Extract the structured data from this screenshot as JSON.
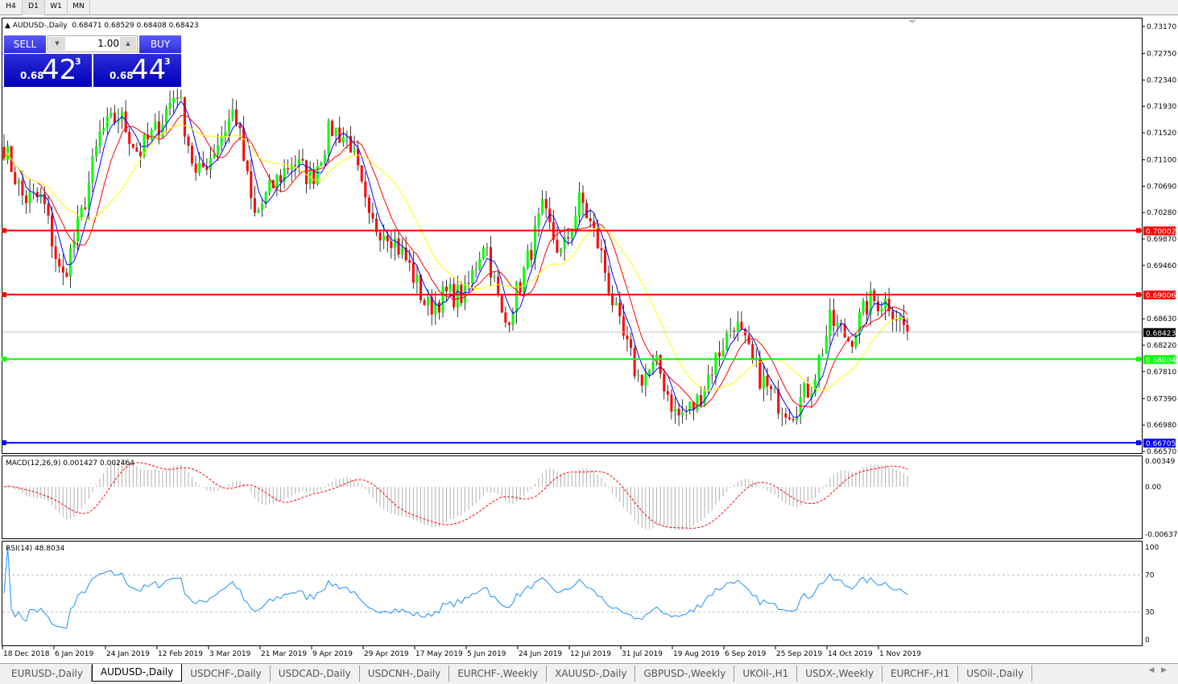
{
  "timeframes": [
    {
      "label": "H4"
    },
    {
      "label": "D1",
      "active": true
    },
    {
      "label": "W1"
    },
    {
      "label": "MN"
    }
  ],
  "header": {
    "symbol": "AUDUSD-,Daily",
    "ohlc": "0.68471 0.68529 0.68408 0.68423"
  },
  "trade_panel": {
    "sell_label": "SELL",
    "buy_label": "BUY",
    "lot": "1.00",
    "sell_small": "0.68",
    "sell_big": "42",
    "sell_sup": "3",
    "buy_small": "0.68",
    "buy_big": "44",
    "buy_sup": "3"
  },
  "chart_data": {
    "type": "candlestick",
    "price_ticks": [
      "0.73170",
      "0.72750",
      "0.72340",
      "0.71930",
      "0.71520",
      "0.71100",
      "0.70690",
      "0.70280",
      "0.69870",
      "0.69460",
      "0.68630",
      "0.68220",
      "0.67810",
      "0.67390",
      "0.66980",
      "0.66570"
    ],
    "ylim": [
      0.6657,
      0.7317
    ],
    "approx_closes": [
      0.713,
      0.705,
      0.705,
      0.692,
      0.702,
      0.715,
      0.718,
      0.712,
      0.716,
      0.722,
      0.708,
      0.713,
      0.719,
      0.702,
      0.707,
      0.711,
      0.708,
      0.716,
      0.714,
      0.701,
      0.7,
      0.695,
      0.688,
      0.69,
      0.69,
      0.699,
      0.685,
      0.693,
      0.703,
      0.696,
      0.705,
      0.697,
      0.685,
      0.677,
      0.679,
      0.671,
      0.673,
      0.68,
      0.686,
      0.679,
      0.674,
      0.672,
      0.676,
      0.686,
      0.683,
      0.689,
      0.689,
      0.68423
    ],
    "horizontal_lines": [
      {
        "price": 0.70002,
        "label": "0.70002",
        "color": "#ff0000"
      },
      {
        "price": 0.69006,
        "label": "0.69006",
        "color": "#ff0000"
      },
      {
        "price": 0.68004,
        "label": "0.68004",
        "color": "#00ff00"
      },
      {
        "price": 0.66705,
        "label": "0.66705",
        "color": "#0000ff"
      }
    ],
    "current_price": {
      "price": 0.68423,
      "label": "0.68423"
    },
    "colors": {
      "bull": "#00ff00",
      "bear": "#ff0000",
      "ma_fast": "#0000ff",
      "ma_mid": "#ff0000",
      "ma_slow": "#ffff00"
    },
    "date_ticks": [
      "18 Dec 2018",
      "6 Jan 2019",
      "24 Jan 2019",
      "12 Feb 2019",
      "3 Mar 2019",
      "21 Mar 2019",
      "9 Apr 2019",
      "29 Apr 2019",
      "17 May 2019",
      "5 Jun 2019",
      "24 Jun 2019",
      "12 Jul 2019",
      "31 Jul 2019",
      "19 Aug 2019",
      "6 Sep 2019",
      "25 Sep 2019",
      "14 Oct 2019",
      "1 Nov 2019"
    ],
    "macd": {
      "label": "MACD(12,26,9) 0.001427 0.002464",
      "ticks": [
        "0.00349",
        "0.00",
        "-0.00637"
      ]
    },
    "rsi": {
      "label": "RSI(14) 48.8034",
      "ticks": [
        "100",
        "70",
        "30",
        "0"
      ]
    }
  },
  "tabs": [
    {
      "label": "EURUSD-,Daily"
    },
    {
      "label": "AUDUSD-,Daily",
      "active": true
    },
    {
      "label": "USDCHF-,Daily"
    },
    {
      "label": "USDCAD-,Daily"
    },
    {
      "label": "USDCNH-,Daily"
    },
    {
      "label": "EURCHF-,Weekly"
    },
    {
      "label": "XAUUSD-,Daily"
    },
    {
      "label": "GBPUSD-,Weekly"
    },
    {
      "label": "UKOil-,H1"
    },
    {
      "label": "USDX-,Weekly"
    },
    {
      "label": "EURCHF-,H1"
    },
    {
      "label": "USOil-,Daily"
    }
  ]
}
